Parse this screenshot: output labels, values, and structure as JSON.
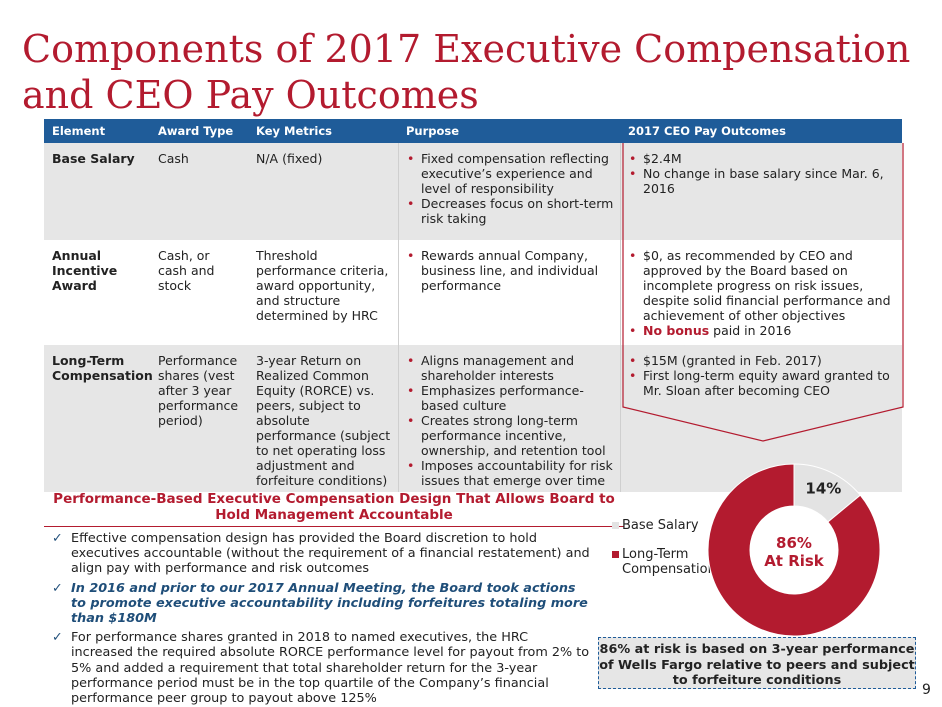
{
  "title": "Components of 2017 Executive Compensation and CEO Pay Outcomes",
  "table": {
    "headers": [
      "Element",
      "Award Type",
      "Key Metrics",
      "Purpose",
      "2017 CEO Pay Outcomes"
    ],
    "rows": [
      {
        "element": "Base Salary",
        "award_type": "Cash",
        "key_metrics": "N/A (fixed)",
        "purpose": [
          "Fixed compensation reflecting executive’s experience and level of responsibility",
          "Decreases focus on short-term risk taking"
        ],
        "outcomes": [
          "$2.4M",
          "No change in base salary since Mar. 6, 2016"
        ]
      },
      {
        "element": "Annual Incentive Award",
        "award_type": "Cash, or cash and stock",
        "key_metrics": "Threshold performance criteria, award opportunity, and structure determined by HRC",
        "purpose": [
          "Rewards annual Company, business line, and individual performance"
        ],
        "outcomes": [
          "$0, as recommended by CEO and approved by the Board based on incomplete progress on risk issues, despite solid financial performance and achievement of other objectives"
        ],
        "outcome_highlight": "No bonus",
        "outcome_highlight_rest": " paid in 2016"
      },
      {
        "element": "Long-Term Compensation",
        "award_type": "Performance shares (vest after 3 year performance period)",
        "key_metrics": "3-year Return on Realized Common Equity (RORCE) vs. peers, subject to absolute performance (subject to net operating loss adjustment and forfeiture conditions)",
        "purpose": [
          "Aligns management and shareholder interests",
          "Emphasizes performance-based culture",
          "Creates strong long-term performance incentive, ownership, and retention tool",
          "Imposes accountability for risk issues that emerge over time"
        ],
        "outcomes": [
          "$15M (granted in Feb. 2017)",
          "First long-term equity award granted to Mr. Sloan after becoming CEO"
        ]
      }
    ]
  },
  "performance_section": {
    "title": "Performance-Based Executive Compensation Design That Allows Board to Hold Management Accountable",
    "items": [
      "Effective compensation design has provided the Board discretion to hold executives accountable (without the requirement of a financial restatement) and align pay with performance and risk outcomes",
      "In 2016 and prior to our 2017 Annual Meeting, the Board took actions to promote executive accountability including forfeitures totaling more than $180M",
      "For performance shares granted in 2018 to named executives, the HRC increased the required absolute RORCE performance level for payout from 2% to 5% and added a requirement that total shareholder return for the 3-year performance period must be in the top quartile of the Company’s financial performance peer group to payout above 125%"
    ],
    "check_icon": "✓"
  },
  "chart_data": {
    "type": "pie",
    "variant": "donut",
    "categories": [
      "Base Salary",
      "Long-Term Compensation"
    ],
    "values": [
      14,
      86
    ],
    "colors": [
      "#e3e3e3",
      "#b31b2f"
    ],
    "data_labels": [
      "14%"
    ],
    "center_label": [
      "86%",
      "At Risk"
    ],
    "legend_position": "left"
  },
  "risk_note": "86% at risk is based on 3-year performance of Wells Fargo relative to peers and subject to forfeiture conditions",
  "page_number": "9",
  "colors": {
    "accent": "#b31b2f",
    "header": "#1f5c99",
    "shade": "#e6e6e6"
  }
}
